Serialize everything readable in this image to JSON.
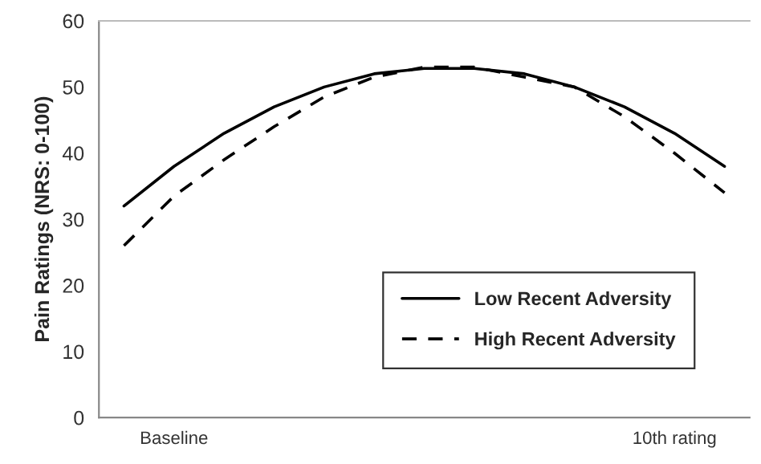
{
  "chart_data": {
    "type": "line",
    "ylabel": "Pain Ratings (NRS: 0-100)",
    "categories": [
      null,
      "Baseline",
      null,
      null,
      null,
      null,
      null,
      null,
      null,
      null,
      null,
      "10th rating",
      null
    ],
    "series": [
      {
        "name": "Low Recent Adversity",
        "color": "#000000",
        "line_style": "solid",
        "values": [
          32,
          38,
          43,
          47,
          50,
          52,
          52.8,
          52.8,
          52,
          50,
          47,
          43,
          38
        ]
      },
      {
        "name": "High Recent Adversity",
        "color": "#000000",
        "line_style": "dashed",
        "values": [
          26,
          33.5,
          39,
          44,
          48.5,
          51.5,
          53,
          53,
          51.5,
          50,
          45.5,
          40,
          34
        ]
      }
    ],
    "ylim": [
      0,
      60
    ],
    "yticks": [
      0,
      10,
      20,
      30,
      40,
      50,
      60
    ],
    "legend": "lower right",
    "grid": false,
    "marker": "none"
  }
}
